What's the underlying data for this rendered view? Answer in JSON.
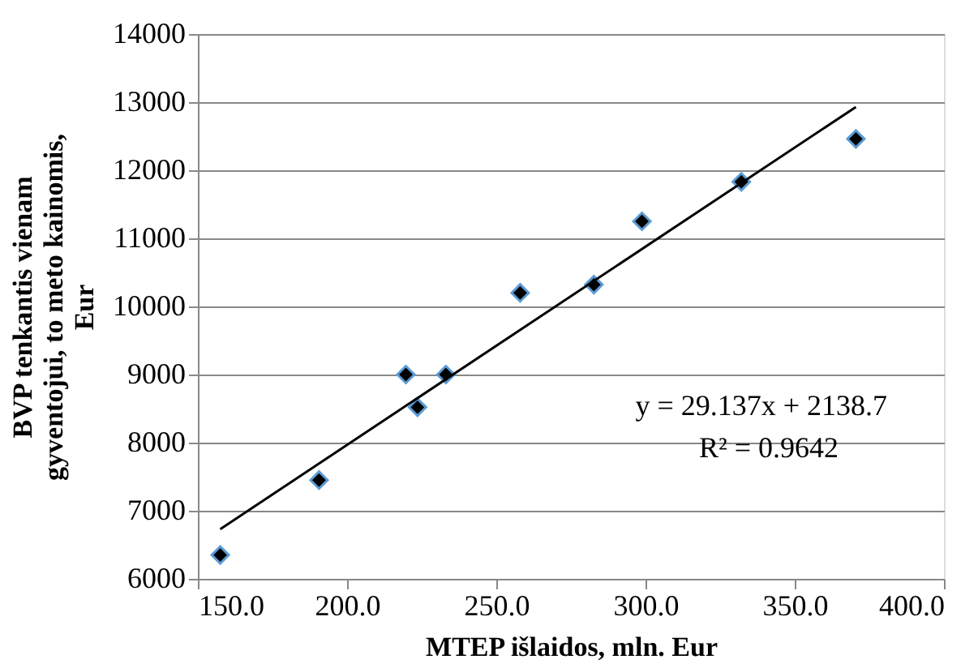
{
  "chart_data": {
    "type": "scatter",
    "xlabel": "MTEP   išlaidos, mln. Eur",
    "ylabel": "BVP tenkantis vienam gyventojui,  to meto kainomis, Eur",
    "x": [
      157.5,
      190.6,
      219.7,
      223.6,
      233.1,
      258.0,
      282.7,
      298.8,
      332.1,
      370.5
    ],
    "series": [
      {
        "color": "#000000",
        "marker": "diamond",
        "values": [
          6350,
          7450,
          9000,
          8520,
          9000,
          10200,
          10320,
          11250,
          11830,
          12460
        ]
      },
      {
        "type": "line",
        "color": "#000000",
        "line_style": "solid",
        "marker": "none",
        "x": [
          157.5,
          370.5
        ],
        "values": [
          6730,
          12930
        ]
      }
    ],
    "annotations": [
      "y = 29.137x  + 2138.7",
      "R² = 0.9642"
    ],
    "xlim": [
      150,
      400
    ],
    "xticks": [
      {
        "value": 150,
        "label": "150.0"
      },
      {
        "value": 200,
        "label": "200.0"
      },
      {
        "value": 250,
        "label": "250.0"
      },
      {
        "value": 300,
        "label": "300.0"
      },
      {
        "value": 350,
        "label": "350.0"
      },
      {
        "value": 400,
        "label": "400.0"
      }
    ],
    "ylim": [
      6000,
      14000
    ],
    "yticks": [
      6000,
      7000,
      8000,
      9000,
      10000,
      11000,
      12000,
      13000,
      14000
    ],
    "grid": "y",
    "legend": false
  }
}
